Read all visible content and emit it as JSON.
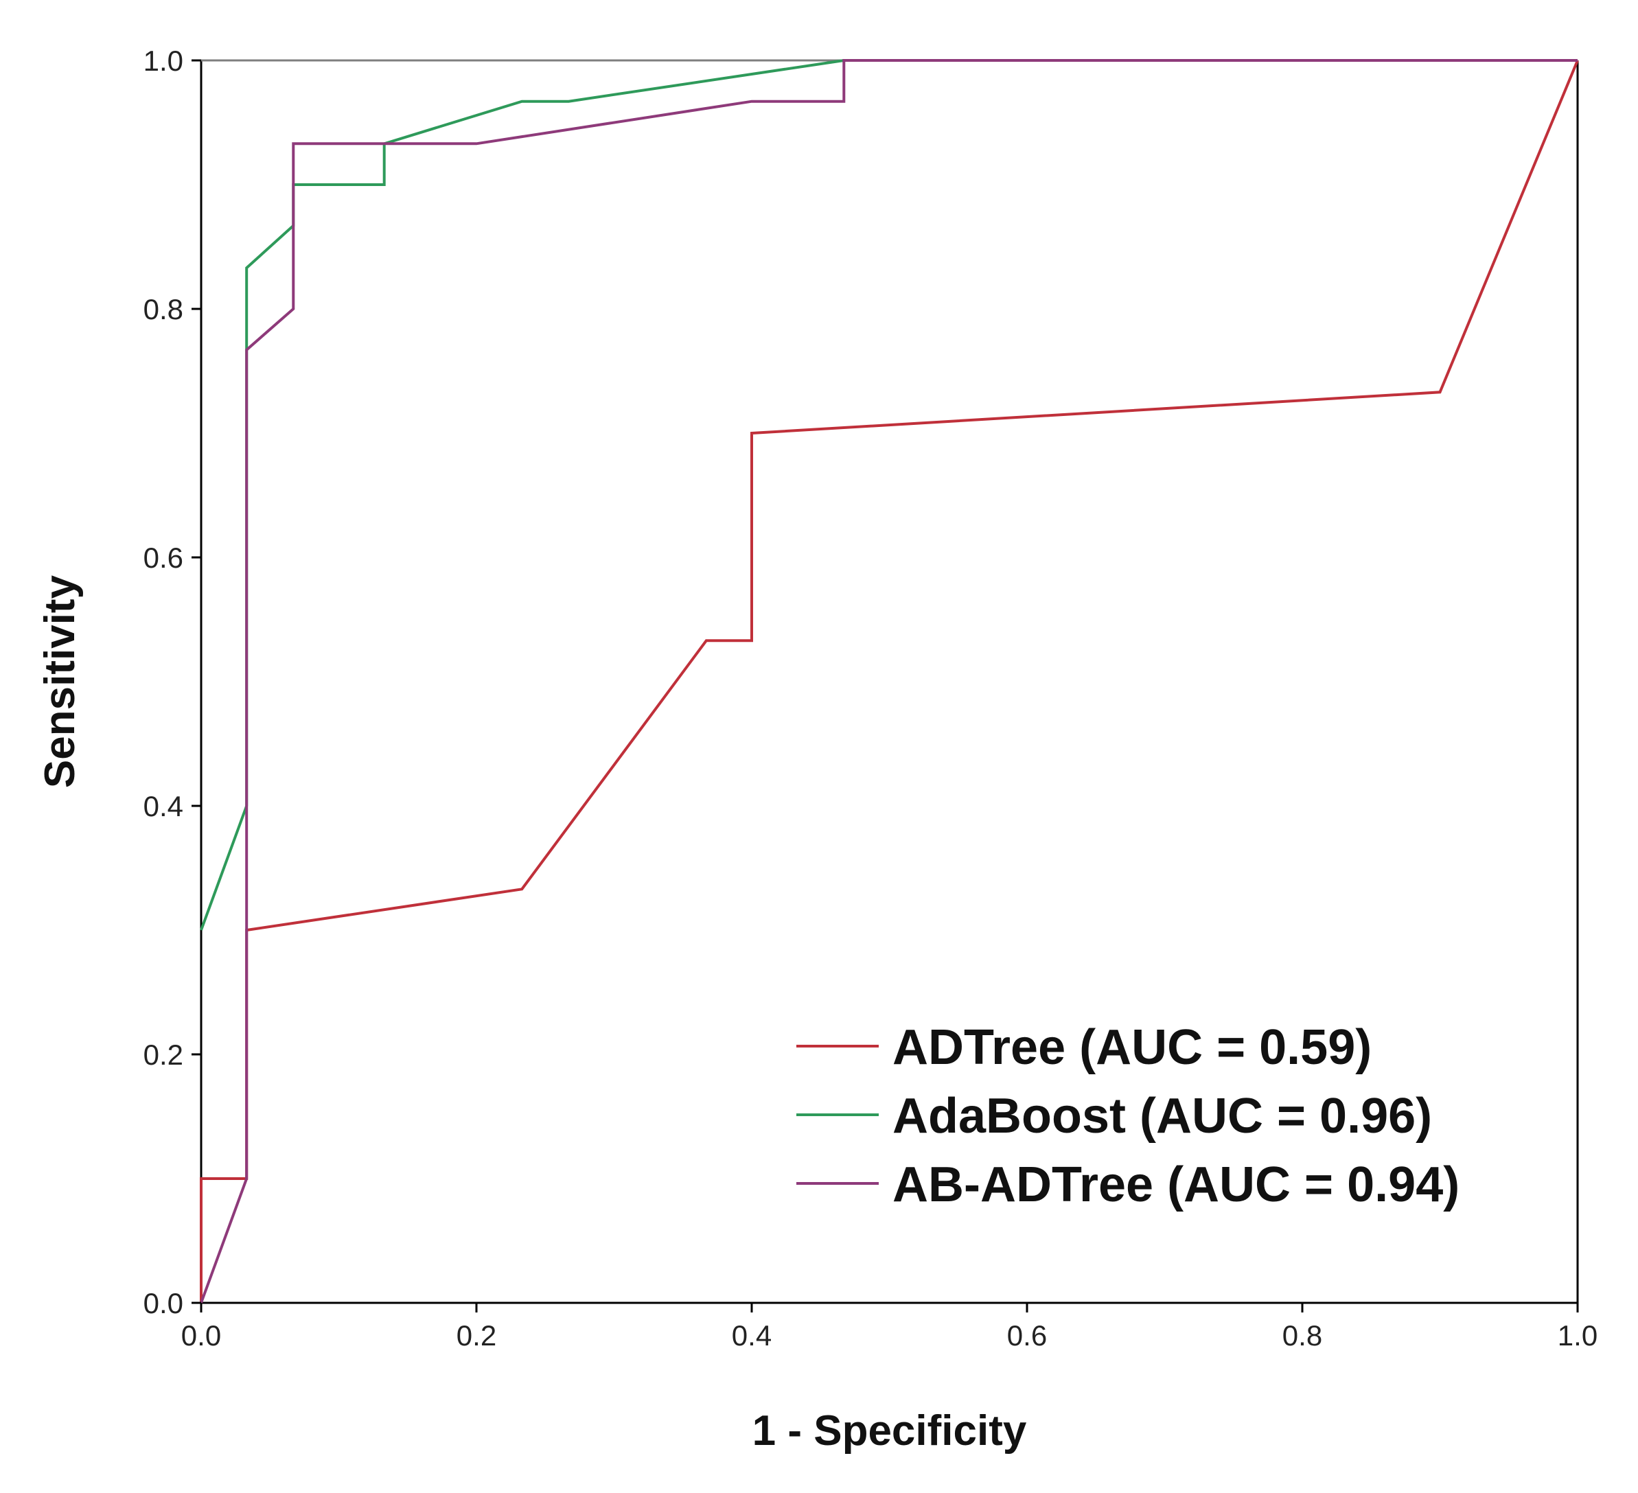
{
  "chart_data": {
    "type": "line",
    "title": "",
    "xlabel": "1 - Specificity",
    "ylabel": "Sensitivity",
    "xlim": [
      0,
      1
    ],
    "ylim": [
      0,
      1
    ],
    "x_ticks": [
      "0.0",
      "0.2",
      "0.4",
      "0.6",
      "0.8",
      "1.0"
    ],
    "y_ticks": [
      "0.0",
      "0.2",
      "0.4",
      "0.6",
      "0.8",
      "1.0"
    ],
    "grid": false,
    "legend_position": "bottom-right",
    "reference_line": {
      "color": "#7f7f7f",
      "points": [
        [
          0,
          1
        ],
        [
          1,
          1
        ]
      ]
    },
    "series": [
      {
        "name": "ADTree (AUC = 0.59)",
        "color": "#c0303a",
        "points": [
          [
            0,
            0
          ],
          [
            0,
            0.1
          ],
          [
            0.033,
            0.1
          ],
          [
            0.033,
            0.3
          ],
          [
            0.233,
            0.333
          ],
          [
            0.367,
            0.533
          ],
          [
            0.4,
            0.533
          ],
          [
            0.4,
            0.7
          ],
          [
            0.9,
            0.733
          ],
          [
            1,
            1
          ]
        ]
      },
      {
        "name": "AdaBoost (AUC = 0.96)",
        "color": "#2e9a5a",
        "points": [
          [
            0,
            0.3
          ],
          [
            0.033,
            0.4
          ],
          [
            0.033,
            0.833
          ],
          [
            0.067,
            0.867
          ],
          [
            0.067,
            0.9
          ],
          [
            0.133,
            0.9
          ],
          [
            0.133,
            0.933
          ],
          [
            0.233,
            0.967
          ],
          [
            0.267,
            0.967
          ],
          [
            0.467,
            1
          ],
          [
            1,
            1
          ]
        ]
      },
      {
        "name": "AB-ADTree (AUC = 0.94)",
        "color": "#8e3a7a",
        "points": [
          [
            0,
            0
          ],
          [
            0.033,
            0.1
          ],
          [
            0.033,
            0.767
          ],
          [
            0.067,
            0.8
          ],
          [
            0.067,
            0.933
          ],
          [
            0.2,
            0.933
          ],
          [
            0.4,
            0.967
          ],
          [
            0.467,
            0.967
          ],
          [
            0.467,
            1
          ],
          [
            1,
            1
          ]
        ]
      }
    ]
  }
}
